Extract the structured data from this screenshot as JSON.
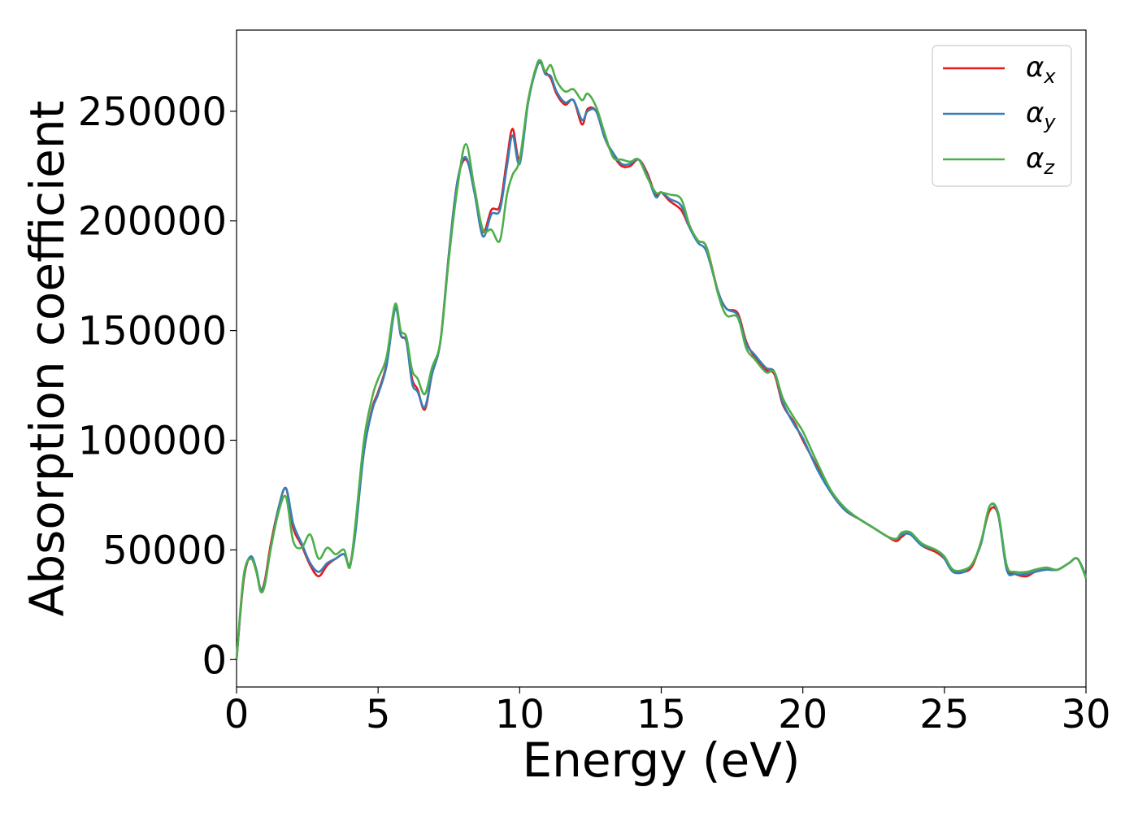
{
  "chart_data": {
    "type": "line",
    "xlabel": "Energy (eV)",
    "ylabel": "Absorption coefficient",
    "xlim": [
      0,
      30
    ],
    "ylim": [
      -12500,
      287000
    ],
    "xticks": [
      0,
      5,
      10,
      15,
      20,
      25,
      30
    ],
    "xtick_labels": [
      "0",
      "5",
      "10",
      "15",
      "20",
      "25",
      "30"
    ],
    "yticks": [
      0,
      50000,
      100000,
      150000,
      200000,
      250000
    ],
    "ytick_labels": [
      "0",
      "50000",
      "100000",
      "150000",
      "200000",
      "250000"
    ],
    "grid": false,
    "legend_position": "top-right",
    "x": [
      0.0,
      0.25,
      0.5,
      0.7,
      0.85,
      1.0,
      1.2,
      1.5,
      1.75,
      2.0,
      2.3,
      2.6,
      2.9,
      3.2,
      3.5,
      3.8,
      4.0,
      4.2,
      4.5,
      4.8,
      5.0,
      5.3,
      5.6,
      5.8,
      6.0,
      6.2,
      6.4,
      6.65,
      6.9,
      7.2,
      7.5,
      7.8,
      8.1,
      8.4,
      8.7,
      9.0,
      9.3,
      9.55,
      9.75,
      10.0,
      10.3,
      10.6,
      10.75,
      10.9,
      11.1,
      11.3,
      11.6,
      11.9,
      12.2,
      12.4,
      12.7,
      13.0,
      13.3,
      13.6,
      13.9,
      14.2,
      14.5,
      14.8,
      15.0,
      15.3,
      15.7,
      16.0,
      16.3,
      16.6,
      17.0,
      17.3,
      17.7,
      18.0,
      18.3,
      18.7,
      19.0,
      19.3,
      19.7,
      20.0,
      20.5,
      21.0,
      21.5,
      22.0,
      22.5,
      23.0,
      23.3,
      23.5,
      23.8,
      24.2,
      24.7,
      25.0,
      25.3,
      25.7,
      26.0,
      26.3,
      26.6,
      26.9,
      27.2,
      27.5,
      27.9,
      28.2,
      28.6,
      29.0,
      29.4,
      29.7,
      30.0
    ],
    "series": [
      {
        "name": "x",
        "color": "#e41a1c",
        "values": [
          0,
          36000,
          47000,
          40000,
          32000,
          36000,
          52000,
          70000,
          78000,
          60000,
          52000,
          43000,
          38000,
          43000,
          46000,
          48000,
          43000,
          60000,
          95000,
          115000,
          122000,
          135000,
          162000,
          148000,
          145000,
          128000,
          123000,
          114000,
          130000,
          145000,
          185000,
          218000,
          228000,
          215000,
          195000,
          205000,
          207000,
          228000,
          242000,
          228000,
          255000,
          270000,
          272000,
          268000,
          265000,
          258000,
          253000,
          255000,
          244000,
          251000,
          250000,
          238000,
          230000,
          225000,
          225000,
          228000,
          222000,
          212000,
          213000,
          209000,
          205000,
          197000,
          191000,
          188000,
          168000,
          160000,
          158000,
          145000,
          138000,
          132000,
          130000,
          116000,
          108000,
          100000,
          88000,
          76000,
          68000,
          64000,
          60000,
          56000,
          54000,
          56000,
          58000,
          52000,
          49000,
          46000,
          41000,
          40000,
          43000,
          54000,
          68000,
          66000,
          42000,
          39000,
          38000,
          40000,
          41000,
          41000,
          44000,
          46000,
          38000
        ]
      },
      {
        "name": "y",
        "color": "#377eb8",
        "values": [
          0,
          37000,
          47000,
          41000,
          32000,
          35000,
          50000,
          70000,
          78000,
          62000,
          53000,
          44000,
          40000,
          44000,
          46000,
          48000,
          43000,
          58000,
          95000,
          114000,
          121000,
          134000,
          160000,
          148000,
          145000,
          126000,
          122000,
          115000,
          130000,
          145000,
          185000,
          218000,
          229000,
          213000,
          193000,
          203000,
          205000,
          225000,
          239000,
          226000,
          254000,
          270000,
          272000,
          267000,
          266000,
          259000,
          254000,
          255000,
          246000,
          250000,
          250000,
          238000,
          231000,
          226000,
          226000,
          228000,
          221000,
          211000,
          213000,
          210000,
          207000,
          197000,
          190000,
          186000,
          168000,
          160000,
          157000,
          144000,
          139000,
          133000,
          131000,
          117000,
          107000,
          101000,
          87000,
          76000,
          68000,
          64000,
          60000,
          56000,
          55000,
          57000,
          57000,
          52000,
          50000,
          46000,
          40000,
          40000,
          44000,
          53000,
          70000,
          66000,
          41000,
          39000,
          39000,
          40000,
          41000,
          41000,
          44000,
          46000,
          38000
        ]
      },
      {
        "name": "z",
        "color": "#4daf4a",
        "values": [
          0,
          38000,
          46000,
          40000,
          31000,
          34000,
          50000,
          68000,
          74000,
          54000,
          51000,
          57000,
          46000,
          51000,
          48000,
          50000,
          42000,
          62000,
          100000,
          120000,
          128000,
          138000,
          162000,
          150000,
          147000,
          132000,
          128000,
          121000,
          133000,
          145000,
          183000,
          215000,
          235000,
          215000,
          196000,
          196000,
          191000,
          212000,
          221000,
          228000,
          255000,
          271000,
          273000,
          268000,
          271000,
          264000,
          259000,
          260000,
          255000,
          258000,
          252000,
          240000,
          229000,
          228000,
          227000,
          228000,
          220000,
          213000,
          213000,
          212000,
          210000,
          198000,
          191000,
          188000,
          167000,
          157000,
          156000,
          142000,
          137000,
          131000,
          131000,
          119000,
          110000,
          104000,
          90000,
          77000,
          69000,
          64000,
          60000,
          56000,
          55000,
          58000,
          58000,
          53000,
          50000,
          47000,
          41000,
          41000,
          44000,
          54000,
          70000,
          67000,
          43000,
          40000,
          40000,
          41000,
          42000,
          41000,
          44000,
          46000,
          37000
        ]
      }
    ]
  }
}
